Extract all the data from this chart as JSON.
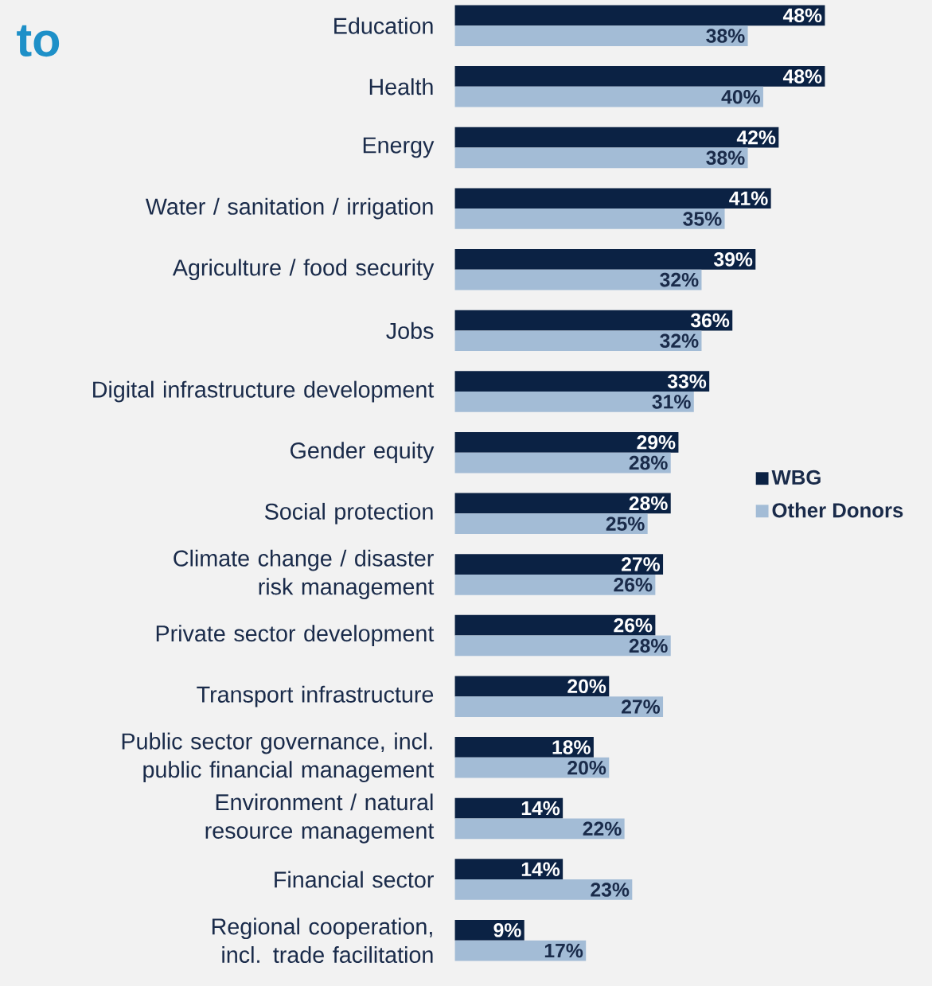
{
  "chart_data": {
    "type": "bar",
    "orientation": "horizontal",
    "annotations": [
      "to"
    ],
    "categories": [
      "Education",
      "Health",
      "Energy",
      "Water / sanitation / irrigation",
      "Agriculture / food security",
      "Jobs",
      "Digital infrastructure development",
      "Gender equity",
      "Social protection",
      "Climate change / disaster risk management",
      "Private sector development",
      "Transport infrastructure",
      "Public sector governance, incl. public financial management",
      "Environment / natural resource management",
      "Financial sector",
      "Regional cooperation, incl. trade facilitation"
    ],
    "series": [
      {
        "name": "WBG",
        "color": "#0b2244",
        "values": [
          48,
          48,
          42,
          41,
          39,
          36,
          33,
          29,
          28,
          27,
          26,
          20,
          18,
          14,
          14,
          9
        ],
        "value_labels": [
          "48%",
          "48%",
          "42%",
          "41%",
          "39%",
          "36%",
          "33%",
          "29%",
          "28%",
          "27%",
          "26%",
          "20%",
          "18%",
          "14%",
          "14%",
          "9%"
        ]
      },
      {
        "name": "Other Donors",
        "color": "#a3bcd6",
        "values": [
          38,
          40,
          38,
          35,
          32,
          32,
          31,
          28,
          25,
          26,
          28,
          27,
          20,
          22,
          23,
          17
        ],
        "value_labels": [
          "38%",
          "40%",
          "38%",
          "35%",
          "32%",
          "32%",
          "31%",
          "28%",
          "25%",
          "26%",
          "28%",
          "27%",
          "20%",
          "22%",
          "23%",
          "17%"
        ]
      }
    ],
    "legend": "right"
  }
}
